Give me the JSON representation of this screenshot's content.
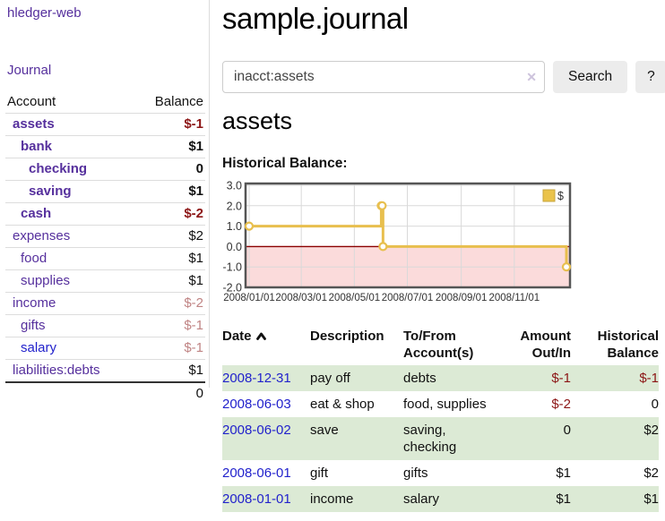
{
  "sidebar": {
    "brand": "hledger-web",
    "journal_link": "Journal",
    "table": {
      "account_header": "Account",
      "balance_header": "Balance",
      "accounts": [
        {
          "name": "assets",
          "level": 1,
          "bold": true,
          "balance": "$-1",
          "balance_class": "neg-strong"
        },
        {
          "name": "bank",
          "level": 2,
          "bold": true,
          "balance": "$1",
          "balance_class": ""
        },
        {
          "name": "checking",
          "level": 3,
          "bold": true,
          "balance": "0",
          "balance_class": ""
        },
        {
          "name": "saving",
          "level": 3,
          "bold": true,
          "balance": "$1",
          "balance_class": ""
        },
        {
          "name": "cash",
          "level": 2,
          "bold": true,
          "balance": "$-2",
          "balance_class": "neg-strong"
        },
        {
          "name": "expenses",
          "level": 1,
          "bold": false,
          "balance": "$2",
          "balance_class": ""
        },
        {
          "name": "food",
          "level": 2,
          "bold": false,
          "balance": "$1",
          "balance_class": ""
        },
        {
          "name": "supplies",
          "level": 2,
          "bold": false,
          "balance": "$1",
          "balance_class": ""
        },
        {
          "name": "income",
          "level": 1,
          "bold": false,
          "balance": "$-2",
          "balance_class": "neg-dim"
        },
        {
          "name": "gifts",
          "level": 2,
          "bold": false,
          "balance": "$-1",
          "balance_class": "neg-dim"
        },
        {
          "name": "salary",
          "level": 2,
          "bold": false,
          "balance": "$-1",
          "balance_class": "neg-dim",
          "link_class": "blue"
        },
        {
          "name": "liabilities:debts",
          "level": 1,
          "bold": false,
          "balance": "$1",
          "balance_class": ""
        }
      ],
      "total": "0"
    }
  },
  "header": {
    "title": "sample.journal"
  },
  "search": {
    "value": "inacct:assets",
    "clear_icon": "✕",
    "button_label": "Search",
    "help_label": "?"
  },
  "main": {
    "account_title": "assets",
    "chart_title": "Historical Balance:"
  },
  "chart_data": {
    "type": "line",
    "step": true,
    "title": "Historical Balance:",
    "series": [
      {
        "name": "$",
        "color": "#e8bf4e",
        "points": [
          {
            "date": "2008-01-01",
            "value": 1
          },
          {
            "date": "2008-06-01",
            "value": 2
          },
          {
            "date": "2008-06-02",
            "value": 2
          },
          {
            "date": "2008-06-03",
            "value": 0
          },
          {
            "date": "2008-12-31",
            "value": -1
          }
        ]
      }
    ],
    "x_range": [
      "2008-01-01",
      "2008-12-31"
    ],
    "ylim": [
      -2.0,
      3.0
    ],
    "y_ticks": [
      "3.0",
      "2.0",
      "1.0",
      "0.0",
      "-1.0",
      "-2.0"
    ],
    "x_ticks": [
      "2008/01/01",
      "2008/03/01",
      "2008/05/01",
      "2008/07/01",
      "2008/09/01",
      "2008/11/01"
    ],
    "legend": {
      "label": "$",
      "position": "top-right"
    },
    "grid": true,
    "negative_region_color": "#fbdbdb",
    "zero_line_color": "#8b0000",
    "plot_border_color": "#555555",
    "grid_color": "#d9d9d9"
  },
  "register": {
    "columns": [
      {
        "label": "Date",
        "sorted": "asc"
      },
      {
        "label": "Description"
      },
      {
        "label": "To/From Account(s)"
      },
      {
        "label": "Amount Out/In",
        "align": "right"
      },
      {
        "label": "Historical Balance",
        "align": "right"
      }
    ],
    "rows": [
      {
        "date": "2008-12-31",
        "description": "pay off",
        "accounts": "debts",
        "amount": "$-1",
        "amount_class": "neg",
        "balance": "$-1",
        "balance_class": "neg"
      },
      {
        "date": "2008-06-03",
        "description": "eat & shop",
        "accounts": "food, supplies",
        "amount": "$-2",
        "amount_class": "neg",
        "balance": "0",
        "balance_class": ""
      },
      {
        "date": "2008-06-02",
        "description": "save",
        "accounts": "saving, checking",
        "amount": "0",
        "amount_class": "",
        "balance": "$2",
        "balance_class": ""
      },
      {
        "date": "2008-06-01",
        "description": "gift",
        "accounts": "gifts",
        "amount": "$1",
        "amount_class": "",
        "balance": "$2",
        "balance_class": ""
      },
      {
        "date": "2008-01-01",
        "description": "income",
        "accounts": "salary",
        "amount": "$1",
        "amount_class": "",
        "balance": "$1",
        "balance_class": ""
      }
    ]
  }
}
